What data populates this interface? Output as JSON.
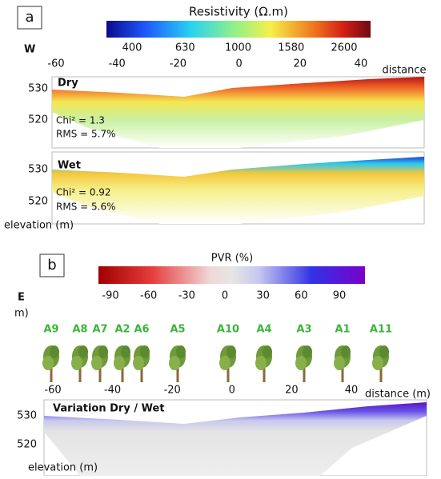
{
  "panel_a": {
    "label": "a",
    "colorbar": {
      "title": "Resistivity (Ω.m)",
      "ticks": [
        "400",
        "630",
        "1000",
        "1580",
        "2600"
      ]
    },
    "orientation": "W",
    "distance_label": "distance",
    "x_ticks": [
      "-60",
      "-40",
      "-20",
      "0",
      "20",
      "40"
    ],
    "sections": [
      {
        "title": "Dry",
        "stats": [
          "Chi² = 1.3",
          "RMS = 5.7%"
        ],
        "y_ticks": [
          "530",
          "520"
        ]
      },
      {
        "title": "Wet",
        "stats": [
          "Chi² = 0.92",
          "RMS = 5.6%"
        ],
        "y_ticks": [
          "530",
          "520"
        ]
      }
    ],
    "elevation_label": "elevation (m)"
  },
  "panel_b": {
    "label": "b",
    "colorbar": {
      "title": "PVR (%)",
      "ticks": [
        "-90",
        "-60",
        "-30",
        "0",
        "30",
        "60",
        "90"
      ]
    },
    "orientation": "E",
    "partial_label": "m)",
    "trees": [
      "A9",
      "A8",
      "A7",
      "A2",
      "A6",
      "A5",
      "A10",
      "A4",
      "A3",
      "A1",
      "A11"
    ],
    "x_ticks": [
      "-60",
      "-40",
      "-20",
      "0",
      "20",
      "40"
    ],
    "distance_label": "distance (m)",
    "section_title": "Variation Dry / Wet",
    "y_ticks": [
      "530",
      "520"
    ],
    "elevation_label": "elevation (m)"
  }
}
